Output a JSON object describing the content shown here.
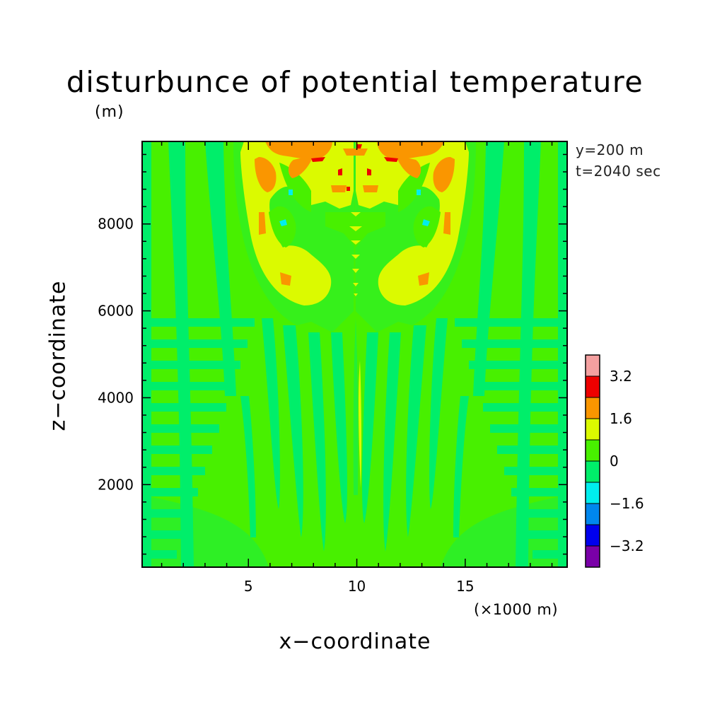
{
  "chart_data": {
    "type": "heatmap",
    "title": "disturbunce of potential temperature",
    "z_units": "(m)",
    "xlabel": "x−coordinate",
    "x_units": "(×1000 m)",
    "ylabel": "z−coordinate",
    "annotations": [
      "y=200 m",
      "t=2040 sec"
    ],
    "xlim": [
      0.1,
      19.7
    ],
    "ylim": [
      100,
      9900
    ],
    "x_ticks": [
      5,
      10,
      15
    ],
    "x_tick_labels": [
      "5",
      "10",
      "15"
    ],
    "y_ticks": [
      2000,
      4000,
      6000,
      8000
    ],
    "y_tick_labels": [
      "2000",
      "4000",
      "6000",
      "8000"
    ],
    "colorbar": {
      "levels": [
        -4.0,
        -3.2,
        -2.4,
        -1.6,
        -0.8,
        0,
        0.8,
        1.6,
        2.4,
        3.2,
        4.0
      ],
      "labels": [
        "−3.2",
        "−1.6",
        "0",
        "1.6",
        "3.2"
      ],
      "label_values": [
        -3.2,
        -1.6,
        0,
        1.6,
        3.2
      ],
      "colors": [
        "#7a00a8",
        "#0000ee",
        "#0087ee",
        "#00eeee",
        "#00ee6a",
        "#48f000",
        "#dbfa00",
        "#fa9600",
        "#ee0000",
        "#f4a0a0"
      ]
    },
    "grid": false
  }
}
